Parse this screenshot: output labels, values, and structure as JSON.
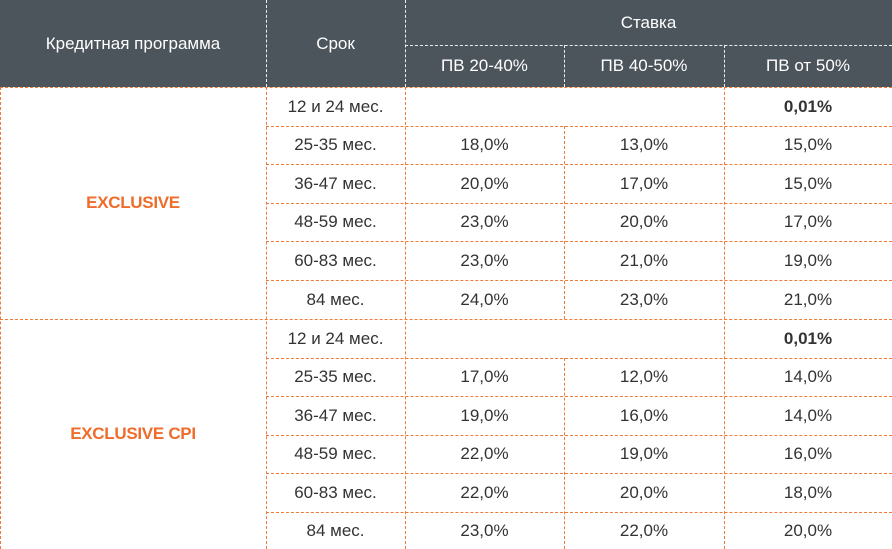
{
  "table": {
    "headers": {
      "program": "Кредитная программа",
      "term": "Срок",
      "rate": "Ставка",
      "sub": [
        "ПВ 20-40%",
        "ПВ 40-50%",
        "ПВ от 50%"
      ]
    },
    "groups": [
      {
        "name": "EXCLUSIVE",
        "rows": [
          {
            "term": "12 и 24 мес.",
            "r1": "",
            "r2": "",
            "r3": "0,01%"
          },
          {
            "term": "25-35 мес.",
            "r1": "18,0%",
            "r2": "13,0%",
            "r3": "15,0%"
          },
          {
            "term": "36-47 мес.",
            "r1": "20,0%",
            "r2": "17,0%",
            "r3": "15,0%"
          },
          {
            "term": "48-59 мес.",
            "r1": "23,0%",
            "r2": "20,0%",
            "r3": "17,0%"
          },
          {
            "term": "60-83 мес.",
            "r1": "23,0%",
            "r2": "21,0%",
            "r3": "19,0%"
          },
          {
            "term": "84 мес.",
            "r1": "24,0%",
            "r2": "23,0%",
            "r3": "21,0%"
          }
        ]
      },
      {
        "name": "EXCLUSIVE CPI",
        "rows": [
          {
            "term": "12 и 24 мес.",
            "r1": "",
            "r2": "",
            "r3": "0,01%"
          },
          {
            "term": "25-35 мес.",
            "r1": "17,0%",
            "r2": "12,0%",
            "r3": "14,0%"
          },
          {
            "term": "36-47 мес.",
            "r1": "19,0%",
            "r2": "16,0%",
            "r3": "14,0%"
          },
          {
            "term": "48-59 мес.",
            "r1": "22,0%",
            "r2": "19,0%",
            "r3": "16,0%"
          },
          {
            "term": "60-83 мес.",
            "r1": "22,0%",
            "r2": "20,0%",
            "r3": "18,0%"
          },
          {
            "term": "84 мес.",
            "r1": "23,0%",
            "r2": "22,0%",
            "r3": "20,0%"
          }
        ]
      }
    ]
  }
}
